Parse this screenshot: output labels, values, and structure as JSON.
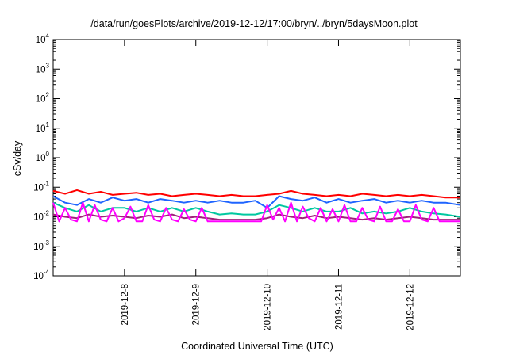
{
  "chart_data": {
    "type": "line",
    "title": "/data/run/goesPlots/archive/2019-12-12/17:00/bryn/../bryn/5daysMoon.plot",
    "xlabel": "Coordinated Universal Time (UTC)",
    "ylabel": "cSv/day",
    "yscale": "log",
    "ylim": [
      0.0001,
      10000
    ],
    "y_ticks": [
      {
        "base": "10",
        "exp": "-4",
        "value": 0.0001
      },
      {
        "base": "10",
        "exp": "-3",
        "value": 0.001
      },
      {
        "base": "10",
        "exp": "-2",
        "value": 0.01
      },
      {
        "base": "10",
        "exp": "-1",
        "value": 0.1
      },
      {
        "base": "10",
        "exp": "0",
        "value": 1
      },
      {
        "base": "10",
        "exp": "1",
        "value": 10
      },
      {
        "base": "10",
        "exp": "2",
        "value": 100
      },
      {
        "base": "10",
        "exp": "3",
        "value": 1000
      },
      {
        "base": "10",
        "exp": "4",
        "value": 10000
      }
    ],
    "xlim": [
      "2019-12-07T00:00",
      "2019-12-12T17:00"
    ],
    "x_ticks": [
      "2019-12-8",
      "2019-12-9",
      "2019-12-10",
      "2019-12-11",
      "2019-12-12"
    ],
    "x_tick_dates": [
      "2019-12-08T00:00",
      "2019-12-09T00:00",
      "2019-12-10T00:00",
      "2019-12-11T00:00",
      "2019-12-12T00:00"
    ],
    "grid": false,
    "series": [
      {
        "color": "#ff0000",
        "x": [
          "2019-12-07T00:00",
          "2019-12-07T04:00",
          "2019-12-07T08:00",
          "2019-12-07T12:00",
          "2019-12-07T16:00",
          "2019-12-07T20:00",
          "2019-12-08T00:00",
          "2019-12-08T04:00",
          "2019-12-08T08:00",
          "2019-12-08T12:00",
          "2019-12-08T16:00",
          "2019-12-08T20:00",
          "2019-12-09T00:00",
          "2019-12-09T04:00",
          "2019-12-09T08:00",
          "2019-12-09T12:00",
          "2019-12-09T16:00",
          "2019-12-09T20:00",
          "2019-12-10T00:00",
          "2019-12-10T04:00",
          "2019-12-10T08:00",
          "2019-12-10T12:00",
          "2019-12-10T16:00",
          "2019-12-10T20:00",
          "2019-12-11T00:00",
          "2019-12-11T04:00",
          "2019-12-11T08:00",
          "2019-12-11T12:00",
          "2019-12-11T16:00",
          "2019-12-11T20:00",
          "2019-12-12T00:00",
          "2019-12-12T04:00",
          "2019-12-12T08:00",
          "2019-12-12T12:00",
          "2019-12-12T17:00"
        ],
        "y": [
          0.075,
          0.06,
          0.08,
          0.06,
          0.07,
          0.055,
          0.06,
          0.065,
          0.055,
          0.06,
          0.05,
          0.055,
          0.06,
          0.055,
          0.05,
          0.055,
          0.05,
          0.05,
          0.055,
          0.06,
          0.075,
          0.06,
          0.055,
          0.05,
          0.055,
          0.05,
          0.06,
          0.055,
          0.05,
          0.055,
          0.05,
          0.055,
          0.05,
          0.045,
          0.045
        ]
      },
      {
        "color": "#1e64ff",
        "x": [
          "2019-12-07T00:00",
          "2019-12-07T04:00",
          "2019-12-07T08:00",
          "2019-12-07T12:00",
          "2019-12-07T16:00",
          "2019-12-07T20:00",
          "2019-12-08T00:00",
          "2019-12-08T04:00",
          "2019-12-08T08:00",
          "2019-12-08T12:00",
          "2019-12-08T16:00",
          "2019-12-08T20:00",
          "2019-12-09T00:00",
          "2019-12-09T04:00",
          "2019-12-09T08:00",
          "2019-12-09T12:00",
          "2019-12-09T16:00",
          "2019-12-09T20:00",
          "2019-12-10T00:00",
          "2019-12-10T04:00",
          "2019-12-10T08:00",
          "2019-12-10T12:00",
          "2019-12-10T16:00",
          "2019-12-10T20:00",
          "2019-12-11T00:00",
          "2019-12-11T04:00",
          "2019-12-11T08:00",
          "2019-12-11T12:00",
          "2019-12-11T16:00",
          "2019-12-11T20:00",
          "2019-12-12T00:00",
          "2019-12-12T04:00",
          "2019-12-12T08:00",
          "2019-12-12T12:00",
          "2019-12-12T17:00"
        ],
        "y": [
          0.05,
          0.03,
          0.025,
          0.04,
          0.03,
          0.045,
          0.035,
          0.04,
          0.03,
          0.04,
          0.035,
          0.03,
          0.035,
          0.03,
          0.035,
          0.03,
          0.03,
          0.035,
          0.02,
          0.05,
          0.04,
          0.035,
          0.045,
          0.03,
          0.04,
          0.03,
          0.035,
          0.04,
          0.03,
          0.035,
          0.03,
          0.035,
          0.03,
          0.03,
          0.025
        ]
      },
      {
        "color": "#00c8a0",
        "x": [
          "2019-12-07T00:00",
          "2019-12-07T04:00",
          "2019-12-07T08:00",
          "2019-12-07T12:00",
          "2019-12-07T16:00",
          "2019-12-07T20:00",
          "2019-12-08T00:00",
          "2019-12-08T04:00",
          "2019-12-08T08:00",
          "2019-12-08T12:00",
          "2019-12-08T16:00",
          "2019-12-08T20:00",
          "2019-12-09T00:00",
          "2019-12-09T04:00",
          "2019-12-09T08:00",
          "2019-12-09T12:00",
          "2019-12-09T16:00",
          "2019-12-09T20:00",
          "2019-12-10T00:00",
          "2019-12-10T04:00",
          "2019-12-10T08:00",
          "2019-12-10T12:00",
          "2019-12-10T16:00",
          "2019-12-10T20:00",
          "2019-12-11T00:00",
          "2019-12-11T04:00",
          "2019-12-11T08:00",
          "2019-12-11T12:00",
          "2019-12-11T16:00",
          "2019-12-11T20:00",
          "2019-12-12T00:00",
          "2019-12-12T04:00",
          "2019-12-12T08:00",
          "2019-12-12T12:00",
          "2019-12-12T17:00"
        ],
        "y": [
          0.03,
          0.02,
          0.015,
          0.025,
          0.015,
          0.02,
          0.02,
          0.015,
          0.02,
          0.015,
          0.02,
          0.015,
          0.02,
          0.015,
          0.012,
          0.013,
          0.012,
          0.012,
          0.015,
          0.025,
          0.02,
          0.015,
          0.02,
          0.015,
          0.015,
          0.02,
          0.013,
          0.015,
          0.013,
          0.015,
          0.02,
          0.015,
          0.013,
          0.012,
          0.01
        ]
      },
      {
        "color": "#a0207a",
        "x": [
          "2019-12-07T00:00",
          "2019-12-07T04:00",
          "2019-12-07T08:00",
          "2019-12-07T12:00",
          "2019-12-07T16:00",
          "2019-12-07T20:00",
          "2019-12-08T00:00",
          "2019-12-08T04:00",
          "2019-12-08T08:00",
          "2019-12-08T12:00",
          "2019-12-08T16:00",
          "2019-12-08T20:00",
          "2019-12-09T00:00",
          "2019-12-09T04:00",
          "2019-12-09T08:00",
          "2019-12-09T12:00",
          "2019-12-09T16:00",
          "2019-12-09T20:00",
          "2019-12-10T00:00",
          "2019-12-10T04:00",
          "2019-12-10T08:00",
          "2019-12-10T12:00",
          "2019-12-10T16:00",
          "2019-12-10T20:00",
          "2019-12-11T00:00",
          "2019-12-11T04:00",
          "2019-12-11T08:00",
          "2019-12-11T12:00",
          "2019-12-11T16:00",
          "2019-12-11T20:00",
          "2019-12-12T00:00",
          "2019-12-12T04:00",
          "2019-12-12T08:00",
          "2019-12-12T12:00",
          "2019-12-12T17:00"
        ],
        "y": [
          0.012,
          0.01,
          0.009,
          0.012,
          0.01,
          0.011,
          0.01,
          0.009,
          0.011,
          0.01,
          0.012,
          0.009,
          0.01,
          0.009,
          0.008,
          0.008,
          0.008,
          0.008,
          0.009,
          0.012,
          0.01,
          0.009,
          0.011,
          0.009,
          0.01,
          0.009,
          0.008,
          0.009,
          0.008,
          0.009,
          0.01,
          0.009,
          0.008,
          0.008,
          0.008
        ]
      },
      {
        "color": "#ff00ff",
        "x": [
          "2019-12-07T00:00",
          "2019-12-07T02:00",
          "2019-12-07T04:00",
          "2019-12-07T06:00",
          "2019-12-07T08:00",
          "2019-12-07T10:00",
          "2019-12-07T12:00",
          "2019-12-07T14:00",
          "2019-12-07T16:00",
          "2019-12-07T18:00",
          "2019-12-07T20:00",
          "2019-12-07T22:00",
          "2019-12-08T00:00",
          "2019-12-08T02:00",
          "2019-12-08T04:00",
          "2019-12-08T06:00",
          "2019-12-08T08:00",
          "2019-12-08T10:00",
          "2019-12-08T12:00",
          "2019-12-08T14:00",
          "2019-12-08T16:00",
          "2019-12-08T18:00",
          "2019-12-08T20:00",
          "2019-12-08T22:00",
          "2019-12-09T00:00",
          "2019-12-09T02:00",
          "2019-12-09T04:00",
          "2019-12-09T06:00",
          "2019-12-09T08:00",
          "2019-12-09T10:00",
          "2019-12-09T12:00",
          "2019-12-09T14:00",
          "2019-12-09T16:00",
          "2019-12-09T18:00",
          "2019-12-09T20:00",
          "2019-12-09T22:00",
          "2019-12-10T00:00",
          "2019-12-10T02:00",
          "2019-12-10T04:00",
          "2019-12-10T06:00",
          "2019-12-10T08:00",
          "2019-12-10T10:00",
          "2019-12-10T12:00",
          "2019-12-10T14:00",
          "2019-12-10T16:00",
          "2019-12-10T18:00",
          "2019-12-10T20:00",
          "2019-12-10T22:00",
          "2019-12-11T00:00",
          "2019-12-11T02:00",
          "2019-12-11T04:00",
          "2019-12-11T06:00",
          "2019-12-11T08:00",
          "2019-12-11T10:00",
          "2019-12-11T12:00",
          "2019-12-11T14:00",
          "2019-12-11T16:00",
          "2019-12-11T18:00",
          "2019-12-11T20:00",
          "2019-12-11T22:00",
          "2019-12-12T00:00",
          "2019-12-12T02:00",
          "2019-12-12T04:00",
          "2019-12-12T06:00",
          "2019-12-12T08:00",
          "2019-12-12T10:00",
          "2019-12-12T12:00",
          "2019-12-12T14:00",
          "2019-12-12T17:00"
        ],
        "y": [
          0.03,
          0.007,
          0.02,
          0.008,
          0.007,
          0.03,
          0.007,
          0.025,
          0.008,
          0.007,
          0.02,
          0.007,
          0.009,
          0.022,
          0.007,
          0.007,
          0.025,
          0.008,
          0.007,
          0.02,
          0.008,
          0.007,
          0.018,
          0.008,
          0.007,
          0.02,
          0.007,
          0.007,
          0.007,
          0.007,
          0.007,
          0.007,
          0.007,
          0.007,
          0.007,
          0.007,
          0.025,
          0.008,
          0.02,
          0.007,
          0.03,
          0.007,
          0.022,
          0.009,
          0.007,
          0.02,
          0.007,
          0.018,
          0.007,
          0.025,
          0.007,
          0.007,
          0.02,
          0.008,
          0.007,
          0.022,
          0.007,
          0.007,
          0.018,
          0.007,
          0.007,
          0.025,
          0.008,
          0.007,
          0.02,
          0.007,
          0.007,
          0.007,
          0.007
        ]
      }
    ]
  }
}
